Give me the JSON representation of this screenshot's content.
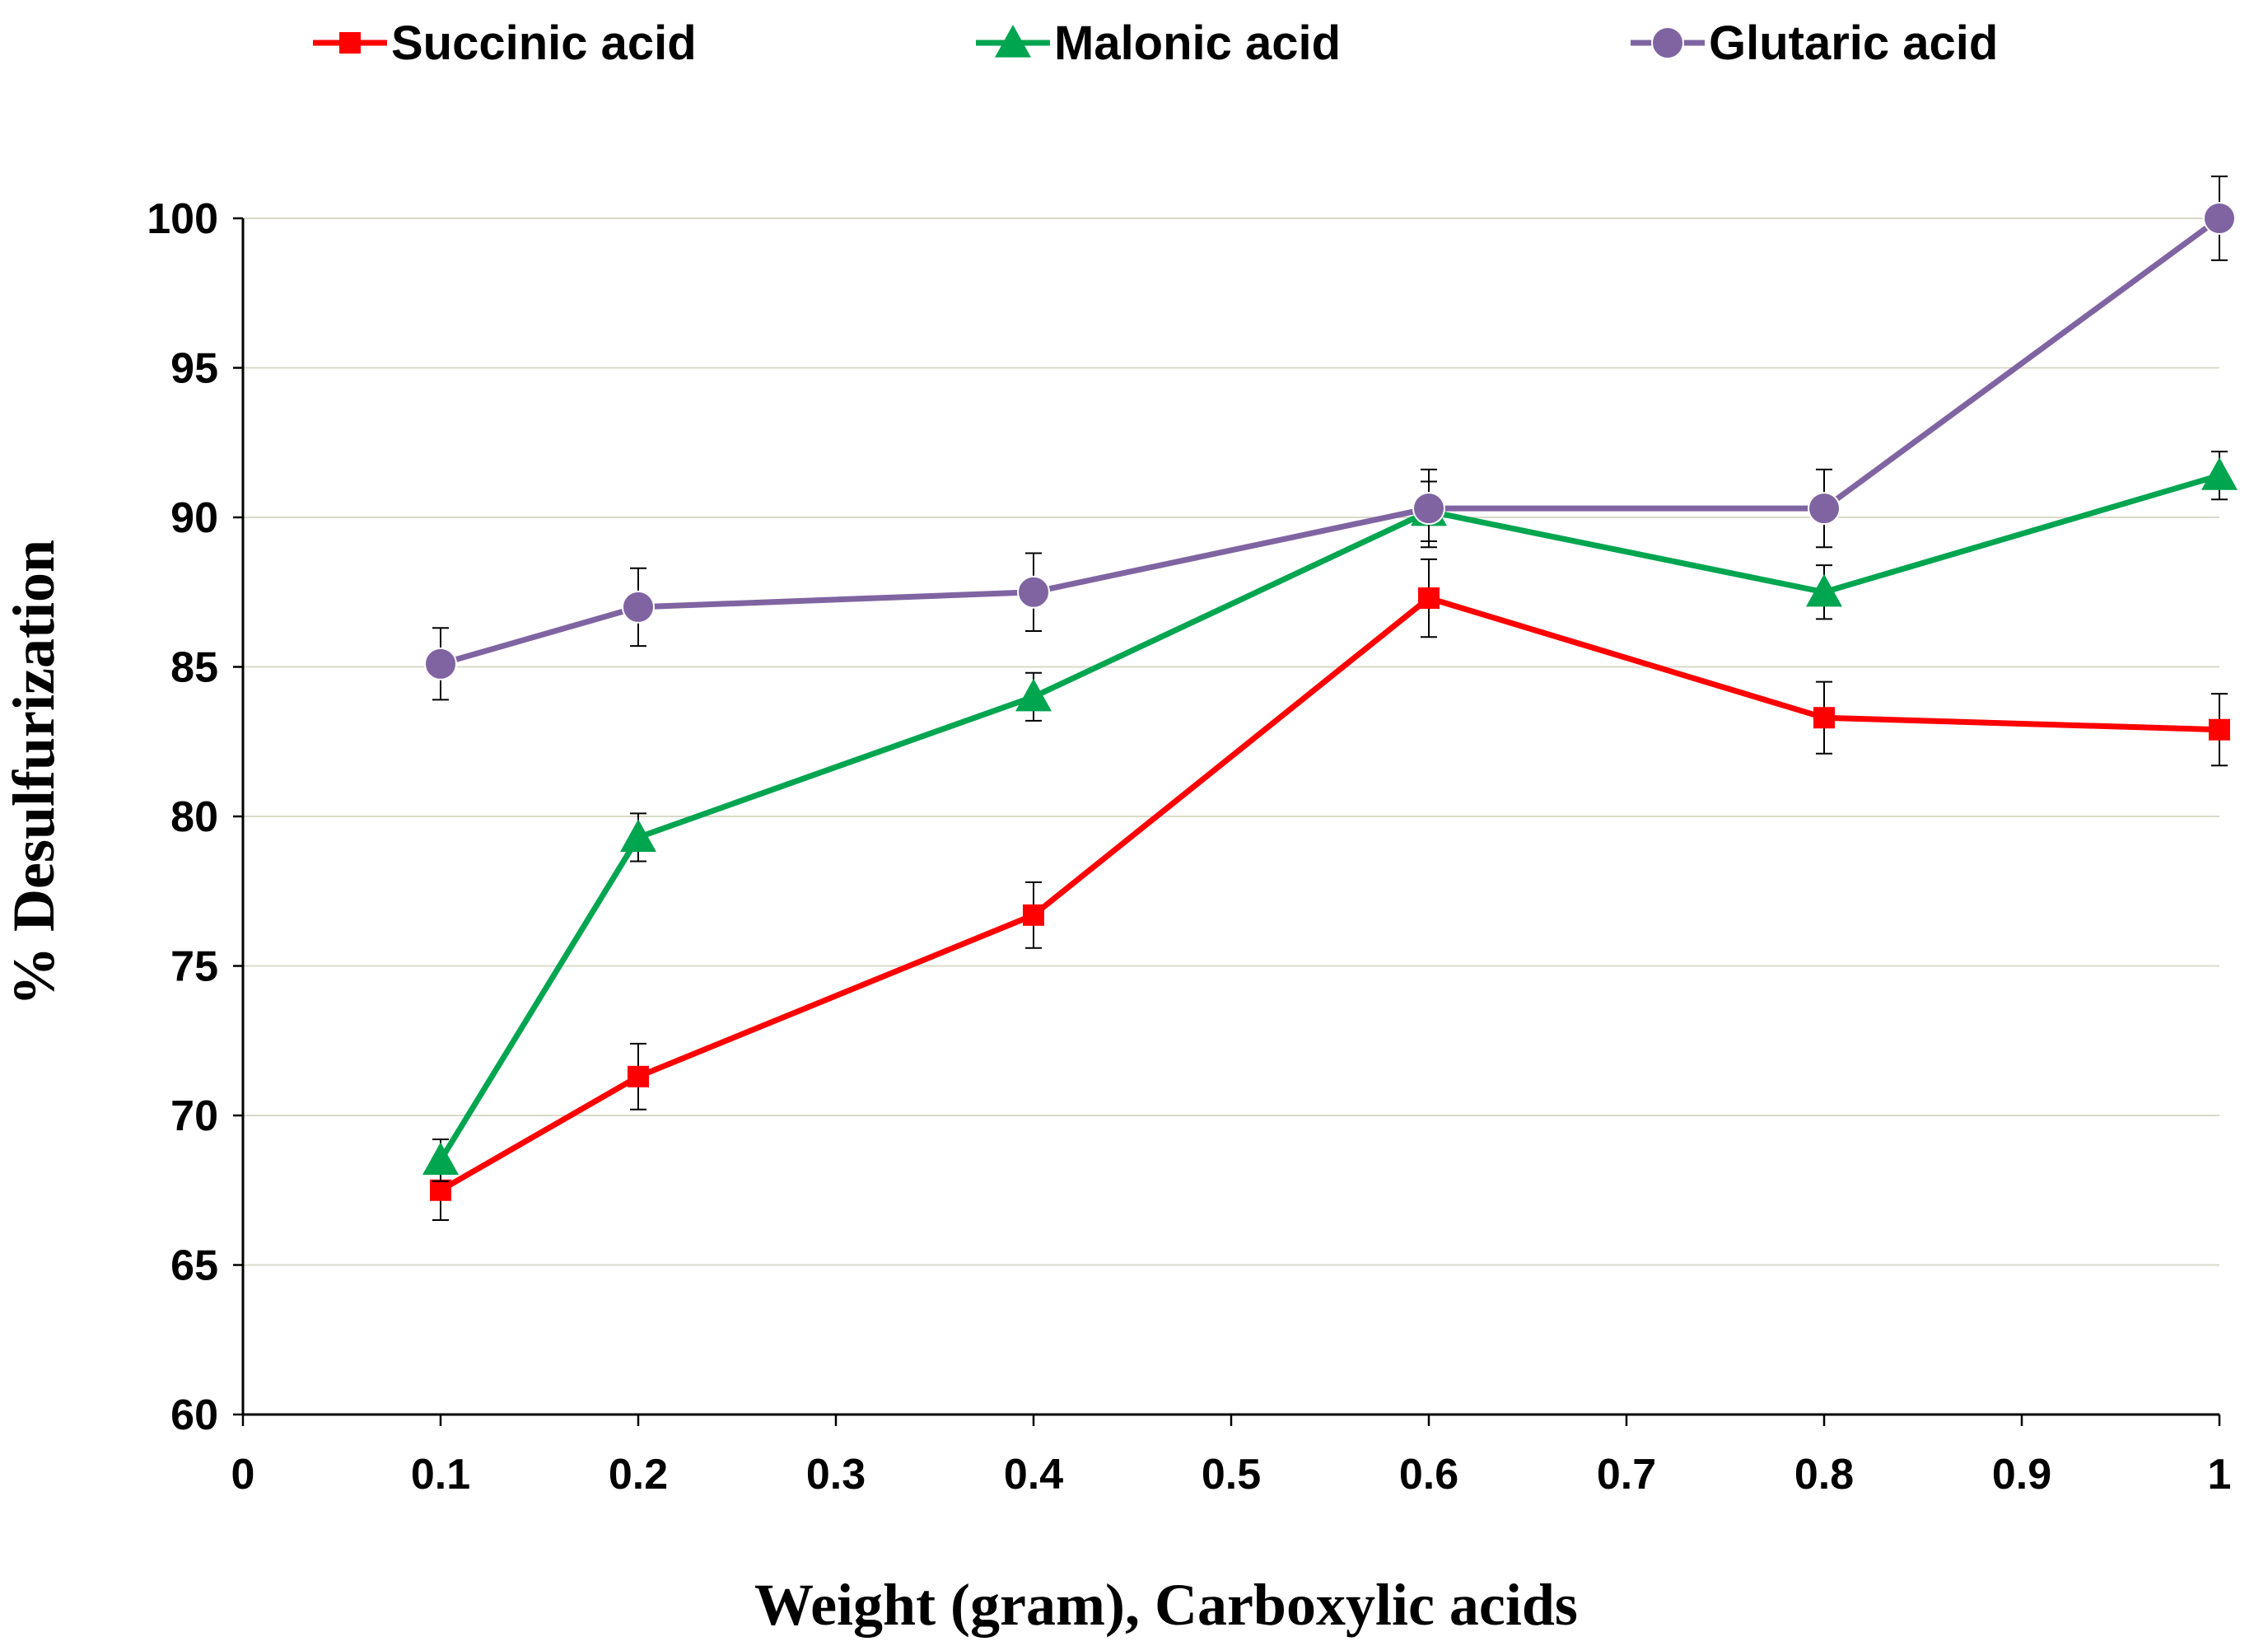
{
  "chart_data": {
    "type": "line",
    "title": "",
    "xlabel": "Weight (gram), Carboxylic acids",
    "ylabel": "% Desulfurization",
    "x_ticks": [
      "0",
      "0.1",
      "0.2",
      "0.3",
      "0.4",
      "0.5",
      "0.6",
      "0.7",
      "0.8",
      "0.9",
      "1"
    ],
    "y_ticks": [
      "60",
      "65",
      "70",
      "75",
      "80",
      "85",
      "90",
      "95",
      "100"
    ],
    "xlim": [
      0,
      1
    ],
    "ylim": [
      60,
      100
    ],
    "x_positions": [
      0.1,
      0.2,
      0.4,
      0.6,
      0.8,
      1.0
    ],
    "grid": "horizontal",
    "legend_position": "top",
    "series": [
      {
        "name": "Succinic acid",
        "color": "#ff0000",
        "marker": "square",
        "values": [
          67.5,
          71.3,
          76.7,
          87.3,
          83.3,
          82.9
        ],
        "errors": [
          1.0,
          1.1,
          1.1,
          1.3,
          1.2,
          1.2
        ]
      },
      {
        "name": "Malonic acid",
        "color": "#00a550",
        "marker": "triangle",
        "values": [
          68.5,
          79.3,
          84.0,
          90.2,
          87.5,
          91.4
        ],
        "errors": [
          0.7,
          0.8,
          0.8,
          1.0,
          0.9,
          0.8
        ]
      },
      {
        "name": "Glutaric acid",
        "color": "#8064a2",
        "marker": "circle",
        "values": [
          85.1,
          87.0,
          87.5,
          90.3,
          90.3,
          100.0
        ],
        "errors": [
          1.2,
          1.3,
          1.3,
          1.3,
          1.3,
          1.4
        ]
      }
    ]
  }
}
